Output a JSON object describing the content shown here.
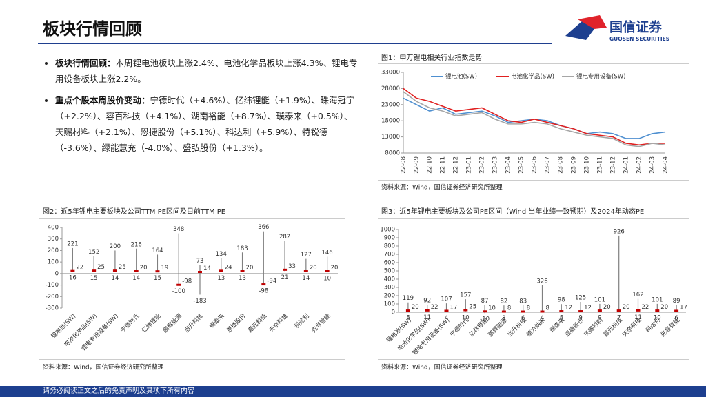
{
  "header": {
    "title": "板块行情回顾",
    "logo_cn": "国信证券",
    "logo_en": "GUOSEN SECURITIES"
  },
  "bullets": [
    {
      "label": "板块行情回顾：",
      "text": "本周锂电池板块上涨2.4%、电池化学品板块上涨4.3%、锂电专用设备板块上涨2.2%。"
    },
    {
      "label": "重点个股本周股价变动：",
      "text": "宁德时代（+4.6%）、亿纬锂能（+1.9%）、珠海冠宇（+2.2%）、容百科技（+4.1%）、湖南裕能（+8.7%）、璞泰来（+0.5%）、天赐材料（+2.1%）、恩捷股份（+5.1%）、科达利（+5.9%）、特锐德（-3.6%）、绿能慧充（-4.0%）、盛弘股份（+1.3%）。"
    }
  ],
  "footer": "请务必阅读正文之后的免责声明及其项下所有内容",
  "chart_data": [
    {
      "type": "line",
      "title": "图1：申万锂电相关行业指数走势",
      "source": "资料来源：Wind，国信证券经济研究所整理",
      "categories": [
        "22-08",
        "22-09",
        "22-10",
        "22-11",
        "22-12",
        "23-01",
        "23-02",
        "23-03",
        "23-04",
        "23-05",
        "23-06",
        "23-07",
        "23-08",
        "23-09",
        "23-10",
        "23-11",
        "23-12",
        "24-01",
        "24-02",
        "24-03",
        "24-04"
      ],
      "series": [
        {
          "name": "锂电池(SW)",
          "color": "#4e8fd0",
          "values": [
            25000,
            23000,
            21000,
            22000,
            20000,
            20500,
            21000,
            19500,
            17500,
            18000,
            18500,
            18000,
            16500,
            15500,
            14000,
            14500,
            14000,
            12500,
            12500,
            14000,
            14500
          ]
        },
        {
          "name": "电池化学品(SW)",
          "color": "#e02020",
          "values": [
            28000,
            25000,
            24000,
            22500,
            21000,
            21500,
            22000,
            20000,
            18000,
            17500,
            18500,
            17500,
            16500,
            15500,
            14000,
            13500,
            13000,
            11000,
            10500,
            11000,
            11000
          ]
        },
        {
          "name": "锂电专用设备(SW)",
          "color": "#a6a6a6",
          "values": [
            27000,
            24000,
            22000,
            21000,
            19500,
            20000,
            20500,
            18500,
            17000,
            17000,
            17500,
            17000,
            15500,
            14500,
            13500,
            13000,
            12500,
            10500,
            10000,
            11000,
            10500
          ]
        }
      ],
      "ylim": [
        8000,
        33000
      ],
      "yticks": [
        8000,
        13000,
        18000,
        23000,
        28000,
        33000
      ]
    },
    {
      "type": "range",
      "title": "图2：近5年锂电主要板块及公司TTM PE区间及目前TTM PE",
      "source": "资料来源：Wind，国信证券经济研究所整理",
      "categories": [
        "锂电池(SW)",
        "电池化学品(SW)",
        "锂电专用设备(SW)",
        "宁德时代",
        "亿纬锂能",
        "鹏辉能源",
        "当升科技",
        "璞泰来",
        "恩捷股份",
        "嘉元科技",
        "天奈科技",
        "科达利",
        "先导智能"
      ],
      "high": [
        221,
        152,
        200,
        216,
        164,
        348,
        73,
        134,
        183,
        366,
        282,
        127,
        146
      ],
      "current": [
        22,
        25,
        25,
        20,
        19,
        -98,
        14,
        24,
        20,
        -94,
        33,
        20,
        20
      ],
      "low": [
        16,
        15,
        14,
        14,
        15,
        -100,
        -183,
        13,
        13,
        -98,
        21,
        14,
        10
      ],
      "color": "#7f7f7f",
      "current_color": "#c00000",
      "ylim": [
        -300,
        400
      ],
      "yticks": [
        -300,
        -200,
        -100,
        0,
        100,
        200,
        300,
        400
      ]
    },
    {
      "type": "range",
      "title": "图3：近5年锂电主要板块及公司PE区间（Wind 当年业绩一致预期）及2024年动态PE",
      "source": "资料来源：Wind，国信证券经济研究所整理",
      "categories": [
        "锂电池(SW)",
        "电池化学品(SW)",
        "锂电专用设备(SW)",
        "宁德时代",
        "亿纬锂能",
        "鹏辉能源",
        "当升科技",
        "德方纳米",
        "璞泰来",
        "恩捷股份",
        "天赐材料",
        "嘉元科技",
        "天奈科技",
        "科达利",
        "先导智能"
      ],
      "high": [
        119,
        92,
        107,
        157,
        87,
        82,
        83,
        326,
        98,
        125,
        101,
        926,
        162,
        101,
        89
      ],
      "current": [
        20,
        22,
        17,
        25,
        10,
        8,
        8,
        8,
        12,
        12,
        20,
        20,
        22,
        20,
        17
      ],
      "low": [
        8,
        11,
        4,
        10,
        -10,
        3,
        6,
        4,
        8,
        9,
        9,
        7,
        11,
        10,
        6
      ],
      "color": "#7f7f7f",
      "current_color": "#c00000",
      "ylim": [
        0,
        1000
      ],
      "yticks": [
        0,
        100,
        200,
        300,
        400,
        500,
        600,
        700,
        800,
        900,
        1000
      ]
    }
  ]
}
